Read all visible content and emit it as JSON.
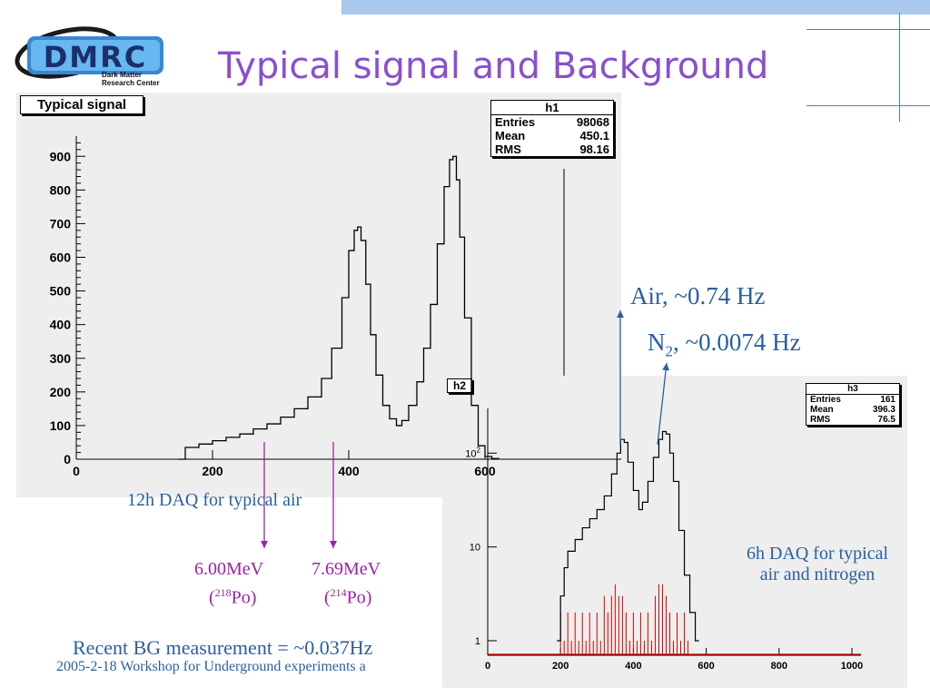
{
  "slide": {
    "title": "Typical signal and Background",
    "footer": "2005-2-18  Workshop for Underground experiments a",
    "colors": {
      "title": "#8a4fcf",
      "annotation_blue": "#2a5fa0",
      "annotation_purple": "#9a22a8",
      "accent_bar": "#a9c8ec"
    }
  },
  "logo": {
    "text": "DMRC",
    "subtitle_line1": "Dark Matter",
    "subtitle_line2": "Research Center"
  },
  "annotations": {
    "daq_12h": "12h DAQ for typical air",
    "energy_218_value": "6.00MeV",
    "energy_218_iso_pre": "(",
    "energy_218_mass": "218",
    "energy_218_element": "Po)",
    "energy_214_value": "7.69MeV",
    "energy_214_iso_pre": "(",
    "energy_214_mass": "214",
    "energy_214_element": "Po)",
    "air_rate": "Air, ~0.74 Hz",
    "n2_rate_prefix": "N",
    "n2_rate_sub": "2",
    "n2_rate_suffix": ", ~0.0074 Hz",
    "daq_6h_line1": "6h DAQ for typical",
    "daq_6h_line2": "air and nitrogen",
    "recent_bg": "Recent BG measurement = ~0.037Hz"
  },
  "chart_data": [
    {
      "type": "line",
      "label": "Typical signal",
      "stats": {
        "name": "h1",
        "rows": [
          [
            "Entries",
            "98068"
          ],
          [
            "Mean",
            "450.1"
          ],
          [
            "RMS",
            "98.16"
          ]
        ]
      },
      "xlim": [
        0,
        800
      ],
      "ylim": [
        0,
        960
      ],
      "x_ticks": [
        "0",
        "200",
        "400",
        "600"
      ],
      "y_ticks": [
        "0",
        "100",
        "200",
        "300",
        "400",
        "500",
        "600",
        "700",
        "800",
        "900"
      ],
      "series": [
        {
          "x": [
            150,
            160,
            180,
            200,
            220,
            240,
            260,
            280,
            300,
            320,
            340,
            360,
            375,
            390,
            400,
            408,
            413,
            418,
            425,
            432,
            440,
            450,
            460,
            470,
            478,
            488,
            500,
            510,
            520,
            530,
            540,
            548,
            553,
            558,
            563,
            570,
            580,
            590,
            600,
            610,
            620
          ],
          "y": [
            0,
            35,
            45,
            55,
            65,
            75,
            90,
            105,
            125,
            150,
            185,
            240,
            330,
            480,
            620,
            680,
            690,
            650,
            520,
            370,
            250,
            160,
            120,
            100,
            115,
            160,
            230,
            330,
            460,
            640,
            810,
            890,
            900,
            830,
            660,
            420,
            160,
            40,
            8,
            2,
            0
          ]
        }
      ]
    },
    {
      "type": "line",
      "label": "h2",
      "stats": {
        "name": "h3",
        "rows": [
          [
            "Entries",
            "161"
          ],
          [
            "Mean",
            "396.3"
          ],
          [
            "RMS",
            "76.5"
          ]
        ]
      },
      "xlim": [
        0,
        1000
      ],
      "y_scale": "log",
      "ylim": [
        0.7,
        300
      ],
      "x_ticks": [
        "0",
        "200",
        "400",
        "600",
        "800",
        "1000"
      ],
      "y_ticks": [
        "1",
        "10",
        "10^2"
      ],
      "series": [
        {
          "name": "air",
          "color": "#000000",
          "x": [
            190,
            200,
            210,
            220,
            240,
            260,
            280,
            300,
            320,
            340,
            355,
            365,
            375,
            385,
            400,
            415,
            425,
            440,
            455,
            470,
            480,
            490,
            500,
            510,
            525,
            540,
            555,
            570,
            580
          ],
          "y": [
            1,
            3,
            6,
            9,
            12,
            16,
            20,
            25,
            35,
            60,
            100,
            140,
            130,
            80,
            40,
            25,
            30,
            50,
            90,
            140,
            170,
            160,
            100,
            50,
            15,
            5,
            2,
            1,
            1
          ]
        },
        {
          "name": "nitrogen",
          "color": "#e00000",
          "x": [
            200,
            220,
            240,
            260,
            280,
            300,
            320,
            340,
            350,
            360,
            370,
            380,
            400,
            420,
            440,
            460,
            470,
            480,
            490,
            500,
            520,
            540
          ],
          "y": [
            2,
            2,
            2,
            2,
            2,
            2,
            3,
            3,
            4,
            3,
            3,
            2,
            2,
            2,
            2,
            3,
            4,
            4,
            3,
            2,
            2,
            2
          ]
        }
      ]
    }
  ]
}
